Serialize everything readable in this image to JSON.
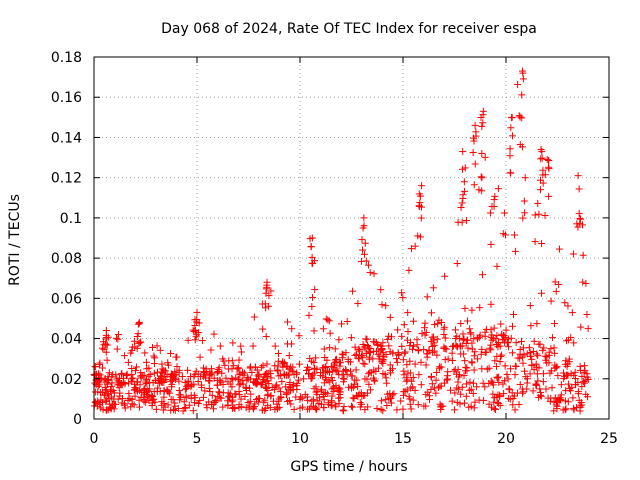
{
  "chart_data": {
    "type": "scatter",
    "title": "Day 068 of 2024, Rate Of TEC Index for receiver espa",
    "xlabel": "GPS time / hours",
    "ylabel": "ROTI / TECUs",
    "xlim": [
      0,
      25
    ],
    "ylim": [
      0,
      0.18
    ],
    "xticks": [
      "0",
      "5",
      "10",
      "15",
      "20",
      "25"
    ],
    "yticks": [
      "0",
      "0.02",
      "0.04",
      "0.06",
      "0.08",
      "0.1",
      "0.12",
      "0.14",
      "0.16",
      "0.18"
    ],
    "grid": true,
    "marker": "+",
    "series": [
      {
        "name": "ROTI",
        "color": "#ff0000",
        "x_range": [
          0,
          24
        ],
        "baseline_profile": [
          [
            0,
            0.018
          ],
          [
            2,
            0.017
          ],
          [
            4,
            0.018
          ],
          [
            6,
            0.019
          ],
          [
            8,
            0.02
          ],
          [
            10,
            0.022
          ],
          [
            12,
            0.024
          ],
          [
            13,
            0.028
          ],
          [
            14,
            0.03
          ],
          [
            15,
            0.032
          ],
          [
            16,
            0.034
          ],
          [
            17,
            0.036
          ],
          [
            18,
            0.036
          ],
          [
            19,
            0.034
          ],
          [
            20,
            0.033
          ],
          [
            21,
            0.03
          ],
          [
            22,
            0.027
          ],
          [
            23,
            0.022
          ],
          [
            24,
            0.02
          ]
        ],
        "envelope_profile": [
          [
            0,
            0.035
          ],
          [
            1,
            0.043
          ],
          [
            2,
            0.044
          ],
          [
            3,
            0.037
          ],
          [
            4,
            0.04
          ],
          [
            5,
            0.05
          ],
          [
            6,
            0.042
          ],
          [
            7,
            0.04
          ],
          [
            8,
            0.055
          ],
          [
            8.5,
            0.068
          ],
          [
            9,
            0.05
          ],
          [
            10,
            0.048
          ],
          [
            10.6,
            0.09
          ],
          [
            11,
            0.06
          ],
          [
            12,
            0.062
          ],
          [
            13.1,
            0.1
          ],
          [
            14,
            0.065
          ],
          [
            15,
            0.065
          ],
          [
            15.9,
            0.115
          ],
          [
            16.5,
            0.09
          ],
          [
            17,
            0.095
          ],
          [
            17.6,
            0.11
          ],
          [
            18,
            0.133
          ],
          [
            18.5,
            0.145
          ],
          [
            18.9,
            0.153
          ],
          [
            19.5,
            0.12
          ],
          [
            20,
            0.12
          ],
          [
            20.6,
            0.172
          ],
          [
            21,
            0.135
          ],
          [
            21.8,
            0.133
          ],
          [
            22.2,
            0.09
          ],
          [
            23,
            0.08
          ],
          [
            23.6,
            0.12
          ],
          [
            24,
            0.05
          ]
        ],
        "peaks": [
          {
            "x": 0.6,
            "y": 0.044
          },
          {
            "x": 2.2,
            "y": 0.048
          },
          {
            "x": 5.0,
            "y": 0.053
          },
          {
            "x": 8.4,
            "y": 0.068
          },
          {
            "x": 10.6,
            "y": 0.09
          },
          {
            "x": 13.1,
            "y": 0.1
          },
          {
            "x": 15.9,
            "y": 0.116
          },
          {
            "x": 17.9,
            "y": 0.133
          },
          {
            "x": 18.5,
            "y": 0.146
          },
          {
            "x": 18.9,
            "y": 0.153
          },
          {
            "x": 20.3,
            "y": 0.15
          },
          {
            "x": 20.8,
            "y": 0.173
          },
          {
            "x": 21.7,
            "y": 0.134
          },
          {
            "x": 22.0,
            "y": 0.129
          },
          {
            "x": 23.5,
            "y": 0.121
          }
        ]
      }
    ]
  }
}
